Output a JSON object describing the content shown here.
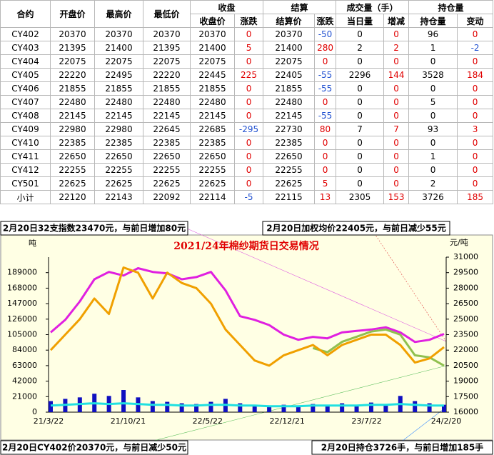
{
  "table": {
    "header_top": [
      "收盘",
      "结算",
      "成交量（手）",
      "持仓量"
    ],
    "header": [
      "合约",
      "开盘价",
      "最高价",
      "最低价",
      "收盘价",
      "涨跌",
      "结算价",
      "涨跌",
      "当日量",
      "增减",
      "持仓量",
      "变动"
    ],
    "rows": [
      [
        "CY402",
        20370,
        20370,
        20370,
        20370,
        0,
        20370,
        -50,
        0,
        0,
        96,
        0
      ],
      [
        "CY403",
        21395,
        21400,
        21395,
        21400,
        5,
        21400,
        280,
        2,
        2,
        1,
        -2
      ],
      [
        "CY404",
        22075,
        22075,
        22075,
        22075,
        0,
        22075,
        0,
        0,
        0,
        0,
        0
      ],
      [
        "CY405",
        22220,
        22495,
        22220,
        22445,
        225,
        22405,
        -55,
        2296,
        144,
        3528,
        184
      ],
      [
        "CY406",
        21855,
        21855,
        21855,
        21855,
        0,
        21855,
        -55,
        0,
        0,
        0,
        0
      ],
      [
        "CY407",
        22480,
        22480,
        22480,
        22480,
        0,
        22480,
        0,
        0,
        0,
        5,
        0
      ],
      [
        "CY408",
        22145,
        22145,
        22145,
        22145,
        0,
        22145,
        -55,
        0,
        0,
        0,
        0
      ],
      [
        "CY409",
        22980,
        22980,
        22645,
        22685,
        -295,
        22730,
        80,
        7,
        7,
        93,
        3
      ],
      [
        "CY410",
        22385,
        22385,
        22385,
        22385,
        0,
        22385,
        0,
        0,
        0,
        0,
        0
      ],
      [
        "CY411",
        22650,
        22650,
        22650,
        22650,
        0,
        22650,
        0,
        0,
        0,
        1,
        0
      ],
      [
        "CY412",
        22255,
        22255,
        22255,
        22255,
        0,
        22255,
        0,
        0,
        0,
        0,
        0
      ],
      [
        "CY501",
        22625,
        22625,
        22625,
        22625,
        0,
        22625,
        5,
        0,
        0,
        2,
        0
      ],
      [
        "小计",
        22120,
        22143,
        22092,
        22114,
        -5,
        22115,
        13,
        2305,
        153,
        3726,
        185
      ]
    ]
  },
  "annotations": [
    "2月20日32支指数23470元，与前日增加80元",
    "2月20日加权均价22405元，与前日减少55元",
    "2月20日CY402价20370元，与前日减少50元",
    "2月20日持仓3726手，与前日增加185手"
  ],
  "chart_data": {
    "type": "combo",
    "title": "2021/24年棉纱期货日交易情况",
    "y_label": "吨",
    "y2_label": "元/吨",
    "xticks": [
      "21/3/22",
      "21/10/21",
      "22/5/22",
      "22/12/21",
      "23/7/22",
      "24/2/20"
    ],
    "ylim": [
      0,
      210000
    ],
    "yticks": [
      0,
      21000,
      42000,
      63000,
      84000,
      105000,
      126000,
      147000,
      168000,
      189000
    ],
    "y2lim": [
      16000,
      31000
    ],
    "y2ticks": [
      16000,
      17500,
      19000,
      20500,
      22000,
      23500,
      25000,
      26500,
      28000,
      29500,
      31000
    ],
    "series": [
      {
        "type": "bar",
        "color": "#1010c0",
        "values": [
          15000,
          18000,
          20000,
          25000,
          22000,
          30000,
          20000,
          15000,
          14000,
          12000,
          11000,
          14000,
          18000,
          12000,
          10000,
          9000,
          10000,
          9000,
          11000,
          10000,
          12000,
          10000,
          13000,
          11000,
          22000,
          15000,
          12000,
          10000
        ]
      },
      {
        "type": "line",
        "color": "#20e0e0",
        "values": [
          9000,
          10000,
          11000,
          12000,
          11000,
          12000,
          11000,
          10000,
          10000,
          9000,
          9000,
          10000,
          10000,
          9000,
          9000,
          8000,
          8000,
          8000,
          9000,
          9000,
          9000,
          9000,
          10000,
          10000,
          11000,
          10000,
          9000,
          9000
        ]
      },
      {
        "type": "line",
        "color": "#e020e0",
        "values": [
          108000,
          125000,
          150000,
          180000,
          190000,
          185000,
          195000,
          190000,
          188000,
          180000,
          183000,
          190000,
          165000,
          130000,
          125000,
          118000,
          105000,
          98000,
          102000,
          100000,
          108000,
          110000,
          112000,
          115000,
          108000,
          95000,
          98000,
          106000
        ]
      },
      {
        "type": "line",
        "axis": "y2",
        "color": "#90c050",
        "values": [
          null,
          null,
          null,
          null,
          null,
          null,
          null,
          null,
          null,
          null,
          null,
          null,
          null,
          null,
          null,
          null,
          null,
          null,
          22200,
          21800,
          22800,
          23300,
          23800,
          24000,
          23500,
          21500,
          21300,
          20500
        ]
      },
      {
        "type": "line",
        "axis": "y2",
        "color": "#f0a000",
        "values": [
          22000,
          23500,
          25000,
          27000,
          25500,
          30000,
          29500,
          27000,
          29500,
          28500,
          28000,
          26500,
          24000,
          22500,
          21000,
          20500,
          21500,
          22000,
          22500,
          21500,
          22500,
          23000,
          23500,
          23500,
          22500,
          20800,
          21200,
          22300
        ]
      }
    ]
  }
}
